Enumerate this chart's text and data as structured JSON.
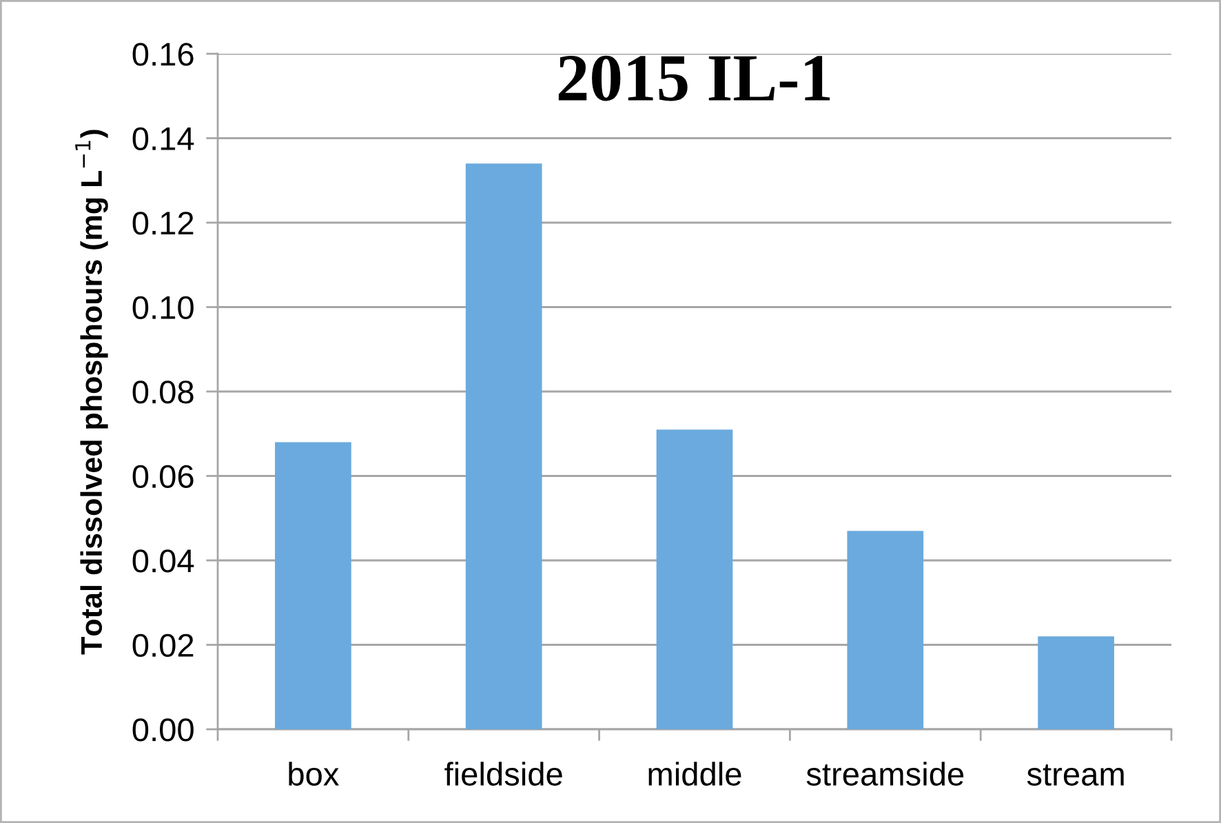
{
  "chart_data": {
    "type": "bar",
    "title": "2015 IL-1",
    "ylabel": "Total dissolved phosphours (mg L$^{−1}$)",
    "categories": [
      "box",
      "fieldside",
      "middle",
      "streamside",
      "stream"
    ],
    "values": [
      0.068,
      0.134,
      0.071,
      0.047,
      0.022
    ],
    "color": "#6baade",
    "ylim": [
      0,
      0.16
    ],
    "yticks": [
      {
        "value": 0,
        "label": "0.00"
      },
      {
        "value": 0.02,
        "label": "0.02"
      },
      {
        "value": 0.04,
        "label": "0.04"
      },
      {
        "value": 0.06,
        "label": "0.06"
      },
      {
        "value": 0.08,
        "label": "0.08"
      },
      {
        "value": 0.1,
        "label": "0.10"
      },
      {
        "value": 0.12,
        "label": "0.12"
      },
      {
        "value": 0.14,
        "label": "0.14"
      },
      {
        "value": 0.16,
        "label": "0.16"
      }
    ],
    "grid": "y"
  }
}
